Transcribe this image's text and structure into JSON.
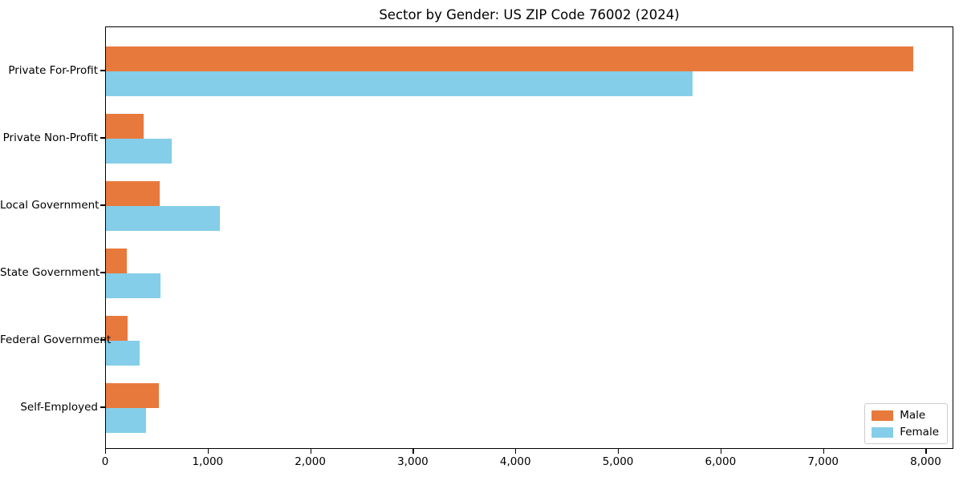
{
  "figure": {
    "title": "Sector by Gender: US ZIP Code 76002 (2024)",
    "background_color": "#ffffff"
  },
  "chart_data": {
    "type": "bar",
    "orientation": "horizontal",
    "title": "Sector by Gender: US ZIP Code 76002 (2024)",
    "categories": [
      "Private For-Profit",
      "Private Non-Profit",
      "Local Government",
      "State Government",
      "Federal Government",
      "Self-Employed"
    ],
    "series": [
      {
        "name": "Male",
        "color": "#e8793c",
        "values": [
          7870,
          370,
          525,
          200,
          215,
          515
        ]
      },
      {
        "name": "Female",
        "color": "#85cee9",
        "values": [
          5720,
          645,
          1110,
          530,
          325,
          390
        ]
      }
    ],
    "xlabel": "",
    "ylabel": "",
    "xlim": [
      0,
      8270
    ],
    "xticks": [
      0,
      1000,
      2000,
      3000,
      4000,
      5000,
      6000,
      7000,
      8000
    ],
    "xtick_labels": [
      "0",
      "1,000",
      "2,000",
      "3,000",
      "4,000",
      "5,000",
      "6,000",
      "7,000",
      "8,000"
    ],
    "grid": false,
    "legend": {
      "position": "lower right",
      "entries": [
        "Male",
        "Female"
      ]
    }
  },
  "colors": {
    "male": "#e8793c",
    "female": "#85cee9",
    "axis": "#000000",
    "legend_border": "#cccccc"
  }
}
